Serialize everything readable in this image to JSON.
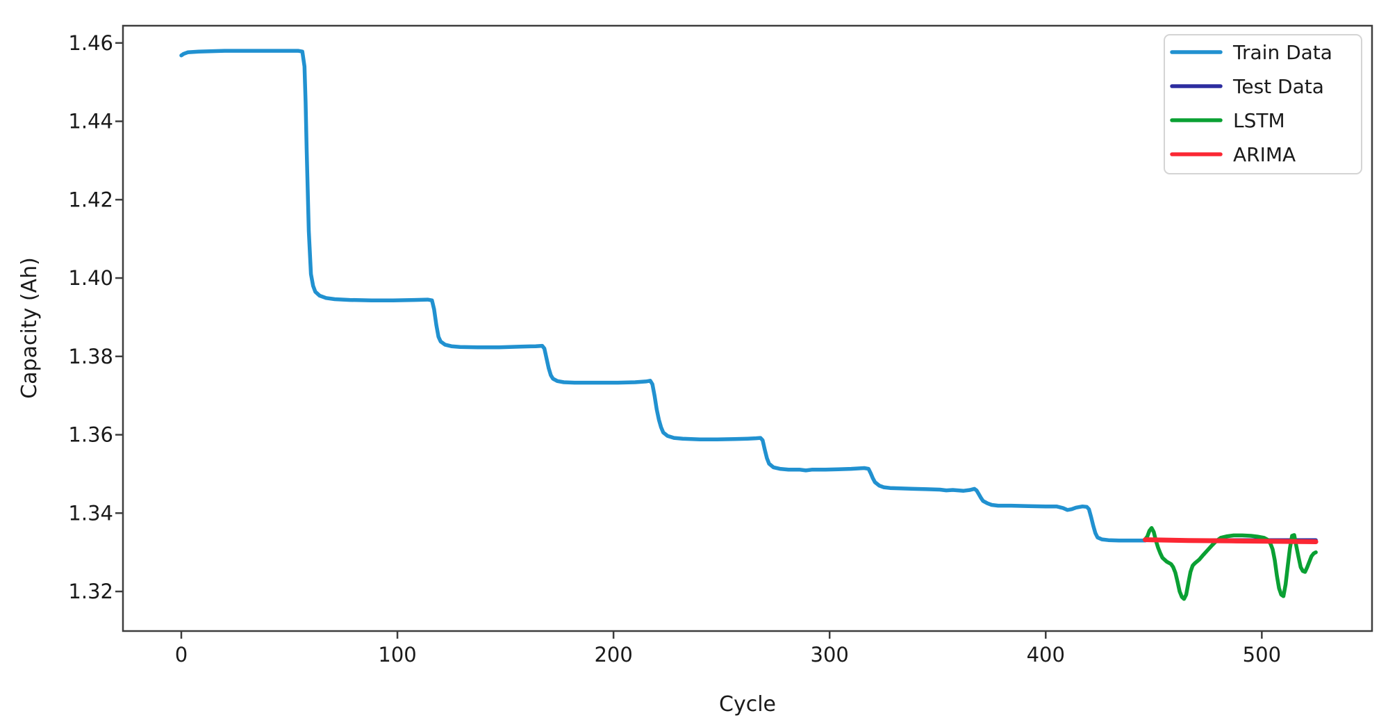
{
  "axes": {
    "xlabel": "Cycle",
    "ylabel": "Capacity (Ah)"
  },
  "chart_data": {
    "type": "line",
    "title": "",
    "xlabel": "Cycle",
    "ylabel": "Capacity (Ah)",
    "xlim": [
      -27,
      551
    ],
    "ylim": [
      1.3099,
      1.4644
    ],
    "grid": false,
    "frame_color": "#3d3d3d",
    "text_color": "#1a1a1a",
    "x_ticks": [
      {
        "label": "0",
        "value": 0
      },
      {
        "label": "100",
        "value": 100
      },
      {
        "label": "200",
        "value": 200
      },
      {
        "label": "300",
        "value": 300
      },
      {
        "label": "400",
        "value": 400
      },
      {
        "label": "500",
        "value": 500
      }
    ],
    "y_ticks": [
      {
        "label": "1.32",
        "value": 1.32
      },
      {
        "label": "1.34",
        "value": 1.34
      },
      {
        "label": "1.36",
        "value": 1.36
      },
      {
        "label": "1.38",
        "value": 1.38
      },
      {
        "label": "1.40",
        "value": 1.4
      },
      {
        "label": "1.42",
        "value": 1.42
      },
      {
        "label": "1.44",
        "value": 1.44
      },
      {
        "label": "1.46",
        "value": 1.46
      }
    ],
    "legend": {
      "position": "upper right",
      "border_color": "#d4d4d4",
      "entries": [
        {
          "label": "Train Data",
          "color": "#2191d0"
        },
        {
          "label": "Test Data",
          "color": "#2d2d9f"
        },
        {
          "label": "LSTM",
          "color": "#0aa033"
        },
        {
          "label": "ARIMA",
          "color": "#fb2733"
        }
      ]
    },
    "series": [
      {
        "name": "Train Data",
        "color": "#2191d0",
        "width": 5.5,
        "points": [
          [
            0,
            1.4568
          ],
          [
            1,
            1.4572
          ],
          [
            3,
            1.4576
          ],
          [
            8,
            1.4578
          ],
          [
            20,
            1.458
          ],
          [
            40,
            1.458
          ],
          [
            54,
            1.458
          ],
          [
            56,
            1.4578
          ],
          [
            57,
            1.454
          ],
          [
            57.5,
            1.445
          ],
          [
            58,
            1.433
          ],
          [
            59,
            1.412
          ],
          [
            60,
            1.401
          ],
          [
            61,
            1.398
          ],
          [
            62,
            1.3965
          ],
          [
            64,
            1.3955
          ],
          [
            67,
            1.3949
          ],
          [
            71,
            1.3946
          ],
          [
            78,
            1.3944
          ],
          [
            88,
            1.3943
          ],
          [
            98,
            1.3943
          ],
          [
            108,
            1.3944
          ],
          [
            114,
            1.3945
          ],
          [
            116,
            1.3943
          ],
          [
            117,
            1.392
          ],
          [
            118,
            1.388
          ],
          [
            119,
            1.385
          ],
          [
            120,
            1.3838
          ],
          [
            122,
            1.383
          ],
          [
            125,
            1.3826
          ],
          [
            129,
            1.3824
          ],
          [
            137,
            1.3823
          ],
          [
            147,
            1.3823
          ],
          [
            157,
            1.3825
          ],
          [
            164,
            1.3826
          ],
          [
            167,
            1.3827
          ],
          [
            168,
            1.382
          ],
          [
            169,
            1.3795
          ],
          [
            170,
            1.377
          ],
          [
            171,
            1.3752
          ],
          [
            172,
            1.3743
          ],
          [
            174,
            1.3737
          ],
          [
            177,
            1.3734
          ],
          [
            182,
            1.3733
          ],
          [
            192,
            1.3733
          ],
          [
            202,
            1.3733
          ],
          [
            210,
            1.3734
          ],
          [
            215,
            1.3736
          ],
          [
            217,
            1.3738
          ],
          [
            218,
            1.3729
          ],
          [
            219,
            1.37
          ],
          [
            220,
            1.3665
          ],
          [
            221,
            1.3638
          ],
          [
            222,
            1.3619
          ],
          [
            223,
            1.3606
          ],
          [
            225,
            1.3597
          ],
          [
            228,
            1.3592
          ],
          [
            232,
            1.359
          ],
          [
            240,
            1.3588
          ],
          [
            248,
            1.3588
          ],
          [
            256,
            1.3589
          ],
          [
            262,
            1.359
          ],
          [
            266,
            1.3591
          ],
          [
            268,
            1.3592
          ],
          [
            269,
            1.3586
          ],
          [
            270,
            1.3562
          ],
          [
            271,
            1.354
          ],
          [
            272,
            1.3526
          ],
          [
            274,
            1.3517
          ],
          [
            277,
            1.3513
          ],
          [
            281,
            1.3511
          ],
          [
            286,
            1.3511
          ],
          [
            289,
            1.3509
          ],
          [
            292,
            1.3511
          ],
          [
            298,
            1.3511
          ],
          [
            304,
            1.3512
          ],
          [
            310,
            1.3513
          ],
          [
            316,
            1.3515
          ],
          [
            318,
            1.3513
          ],
          [
            319,
            1.3502
          ],
          [
            320,
            1.3489
          ],
          [
            321,
            1.3479
          ],
          [
            323,
            1.347
          ],
          [
            325,
            1.3466
          ],
          [
            328,
            1.3464
          ],
          [
            333,
            1.3463
          ],
          [
            339,
            1.3462
          ],
          [
            345,
            1.3461
          ],
          [
            351,
            1.346
          ],
          [
            354,
            1.3458
          ],
          [
            357,
            1.3459
          ],
          [
            362,
            1.3457
          ],
          [
            365,
            1.3459
          ],
          [
            367,
            1.3462
          ],
          [
            368,
            1.3458
          ],
          [
            369,
            1.3449
          ],
          [
            370,
            1.3439
          ],
          [
            371,
            1.3431
          ],
          [
            373,
            1.3425
          ],
          [
            375,
            1.3421
          ],
          [
            378,
            1.3419
          ],
          [
            384,
            1.3419
          ],
          [
            392,
            1.3418
          ],
          [
            400,
            1.3417
          ],
          [
            405,
            1.3417
          ],
          [
            408,
            1.3413
          ],
          [
            410,
            1.3408
          ],
          [
            412,
            1.341
          ],
          [
            414,
            1.3414
          ],
          [
            417,
            1.3417
          ],
          [
            419,
            1.3416
          ],
          [
            420,
            1.341
          ],
          [
            421,
            1.339
          ],
          [
            422,
            1.3368
          ],
          [
            423,
            1.3349
          ],
          [
            424,
            1.3338
          ],
          [
            426,
            1.3333
          ],
          [
            429,
            1.3331
          ],
          [
            434,
            1.333
          ],
          [
            440,
            1.333
          ],
          [
            446,
            1.333
          ]
        ]
      },
      {
        "name": "Test Data",
        "color": "#2d2d9f",
        "width": 5.5,
        "points": [
          [
            446,
            1.3331
          ],
          [
            466,
            1.3331
          ],
          [
            486,
            1.3331
          ],
          [
            506,
            1.3331
          ],
          [
            525,
            1.3331
          ]
        ]
      },
      {
        "name": "LSTM",
        "color": "#0aa033",
        "width": 5.5,
        "points": [
          [
            446,
            1.3333
          ],
          [
            447,
            1.334
          ],
          [
            448,
            1.3355
          ],
          [
            449,
            1.3362
          ],
          [
            450,
            1.3352
          ],
          [
            451,
            1.333
          ],
          [
            452,
            1.3312
          ],
          [
            453,
            1.3298
          ],
          [
            454,
            1.3286
          ],
          [
            456,
            1.3276
          ],
          [
            458,
            1.327
          ],
          [
            459,
            1.3262
          ],
          [
            460,
            1.3248
          ],
          [
            461,
            1.3225
          ],
          [
            462,
            1.32
          ],
          [
            463,
            1.3186
          ],
          [
            464,
            1.3181
          ],
          [
            465,
            1.3192
          ],
          [
            466,
            1.3222
          ],
          [
            467,
            1.325
          ],
          [
            468,
            1.3266
          ],
          [
            469,
            1.3272
          ],
          [
            471,
            1.3281
          ],
          [
            473,
            1.3294
          ],
          [
            475,
            1.3306
          ],
          [
            477,
            1.3318
          ],
          [
            479,
            1.3329
          ],
          [
            481,
            1.3337
          ],
          [
            484,
            1.3341
          ],
          [
            487,
            1.3343
          ],
          [
            491,
            1.3343
          ],
          [
            495,
            1.3342
          ],
          [
            498,
            1.334
          ],
          [
            501,
            1.3337
          ],
          [
            503,
            1.3331
          ],
          [
            504,
            1.3322
          ],
          [
            505,
            1.3308
          ],
          [
            506,
            1.328
          ],
          [
            507,
            1.324
          ],
          [
            508,
            1.3208
          ],
          [
            509,
            1.3192
          ],
          [
            510,
            1.3188
          ],
          [
            511,
            1.3218
          ],
          [
            512,
            1.3265
          ],
          [
            513,
            1.331
          ],
          [
            514,
            1.3342
          ],
          [
            515,
            1.3344
          ],
          [
            516,
            1.3315
          ],
          [
            517,
            1.3288
          ],
          [
            518,
            1.3262
          ],
          [
            519,
            1.3252
          ],
          [
            520,
            1.325
          ],
          [
            521,
            1.3262
          ],
          [
            522,
            1.3276
          ],
          [
            523,
            1.329
          ],
          [
            524,
            1.3297
          ],
          [
            525,
            1.33
          ]
        ]
      },
      {
        "name": "ARIMA",
        "color": "#fb2733",
        "width": 7,
        "points": [
          [
            446,
            1.3332
          ],
          [
            466,
            1.333
          ],
          [
            486,
            1.3329
          ],
          [
            506,
            1.3328
          ],
          [
            525,
            1.3327
          ]
        ]
      }
    ]
  }
}
